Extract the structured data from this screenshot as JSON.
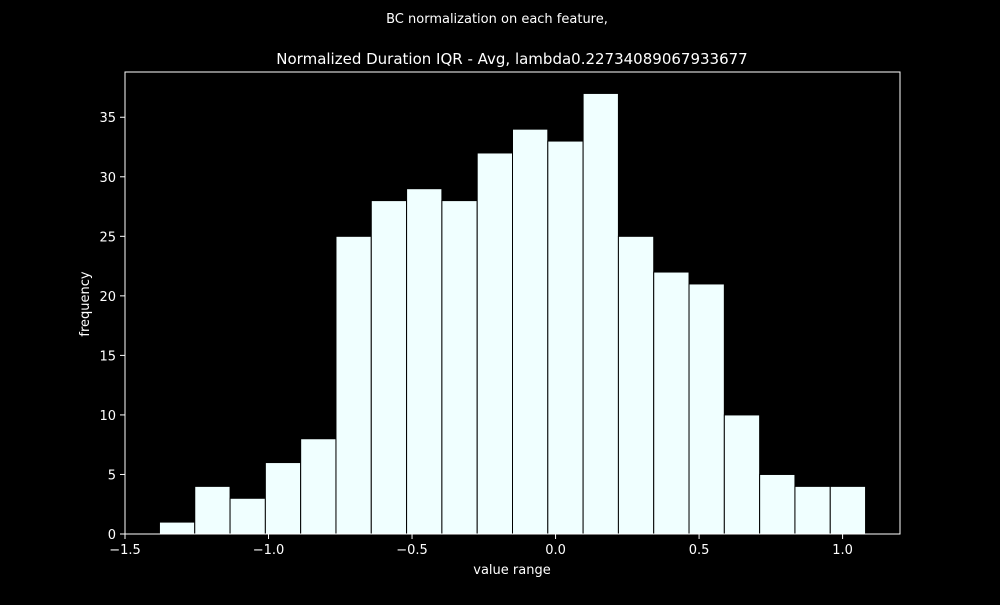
{
  "suptitle": "BC normalization on each feature,",
  "chart_data": {
    "type": "bar",
    "title": "Normalized Duration IQR - Avg, lambda0.22734089067933677",
    "xlabel": "value range",
    "ylabel": "frequency",
    "xlim": [
      -1.5,
      1.2
    ],
    "ylim": [
      0,
      38.8
    ],
    "bin_edges": [
      -1.38,
      -1.257,
      -1.134,
      -1.011,
      -0.888,
      -0.765,
      -0.642,
      -0.519,
      -0.396,
      -0.273,
      -0.15,
      -0.027,
      0.096,
      0.219,
      0.342,
      0.465,
      0.588,
      0.711,
      0.834,
      0.957,
      1.08
    ],
    "values": [
      1,
      4,
      3,
      6,
      8,
      25,
      28,
      29,
      28,
      32,
      34,
      33,
      37,
      25,
      22,
      21,
      10,
      5,
      4,
      4
    ],
    "xticks": [
      -1.5,
      -1.0,
      -0.5,
      0.0,
      0.5,
      1.0
    ],
    "xtick_labels": [
      "−1.5",
      "−1.0",
      "−0.5",
      "0.0",
      "0.5",
      "1.0"
    ],
    "yticks": [
      0,
      5,
      10,
      15,
      20,
      25,
      30,
      35
    ],
    "ytick_labels": [
      "0",
      "5",
      "10",
      "15",
      "20",
      "25",
      "30",
      "35"
    ],
    "colors": {
      "background": "#000000",
      "bar_fill": "#f0ffff",
      "bar_edge": "#000000",
      "axes": "#ffffff"
    },
    "grid": false,
    "legend": false
  }
}
